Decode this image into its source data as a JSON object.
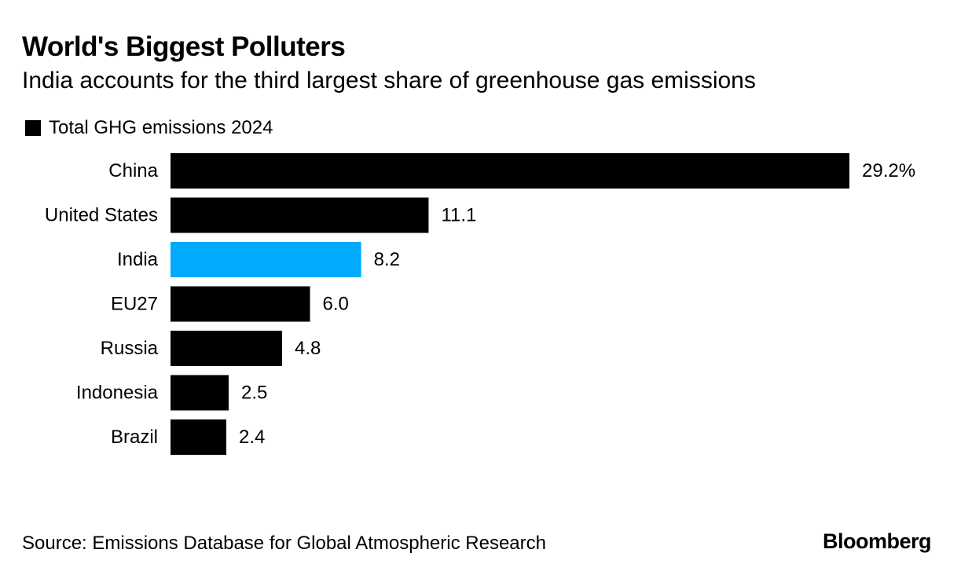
{
  "header": {
    "title": "World's Biggest Polluters",
    "subtitle": "India accounts for the third largest share of greenhouse gas emissions"
  },
  "legend": {
    "label": "Total GHG emissions 2024",
    "color": "#000000"
  },
  "chart_data": {
    "type": "bar",
    "orientation": "horizontal",
    "title": "World's Biggest Polluters",
    "subtitle": "India accounts for the third largest share of greenhouse gas emissions",
    "categories": [
      "China",
      "United States",
      "India",
      "EU27",
      "Russia",
      "Indonesia",
      "Brazil"
    ],
    "series": [
      {
        "name": "Total GHG emissions 2024",
        "values": [
          29.2,
          11.1,
          8.2,
          6.0,
          4.8,
          2.5,
          2.4
        ]
      }
    ],
    "value_labels": [
      "29.2%",
      "11.1",
      "8.2",
      "6.0",
      "4.8",
      "2.5",
      "2.4"
    ],
    "colors": {
      "default": "#000000",
      "highlight": "#00aaff"
    },
    "highlight_category": "India",
    "xlim": [
      0,
      29.2
    ],
    "grid": false,
    "legend_position": "top-left"
  },
  "footer": {
    "source": "Source: Emissions Database for Global Atmospheric Research",
    "brand": "Bloomberg"
  }
}
